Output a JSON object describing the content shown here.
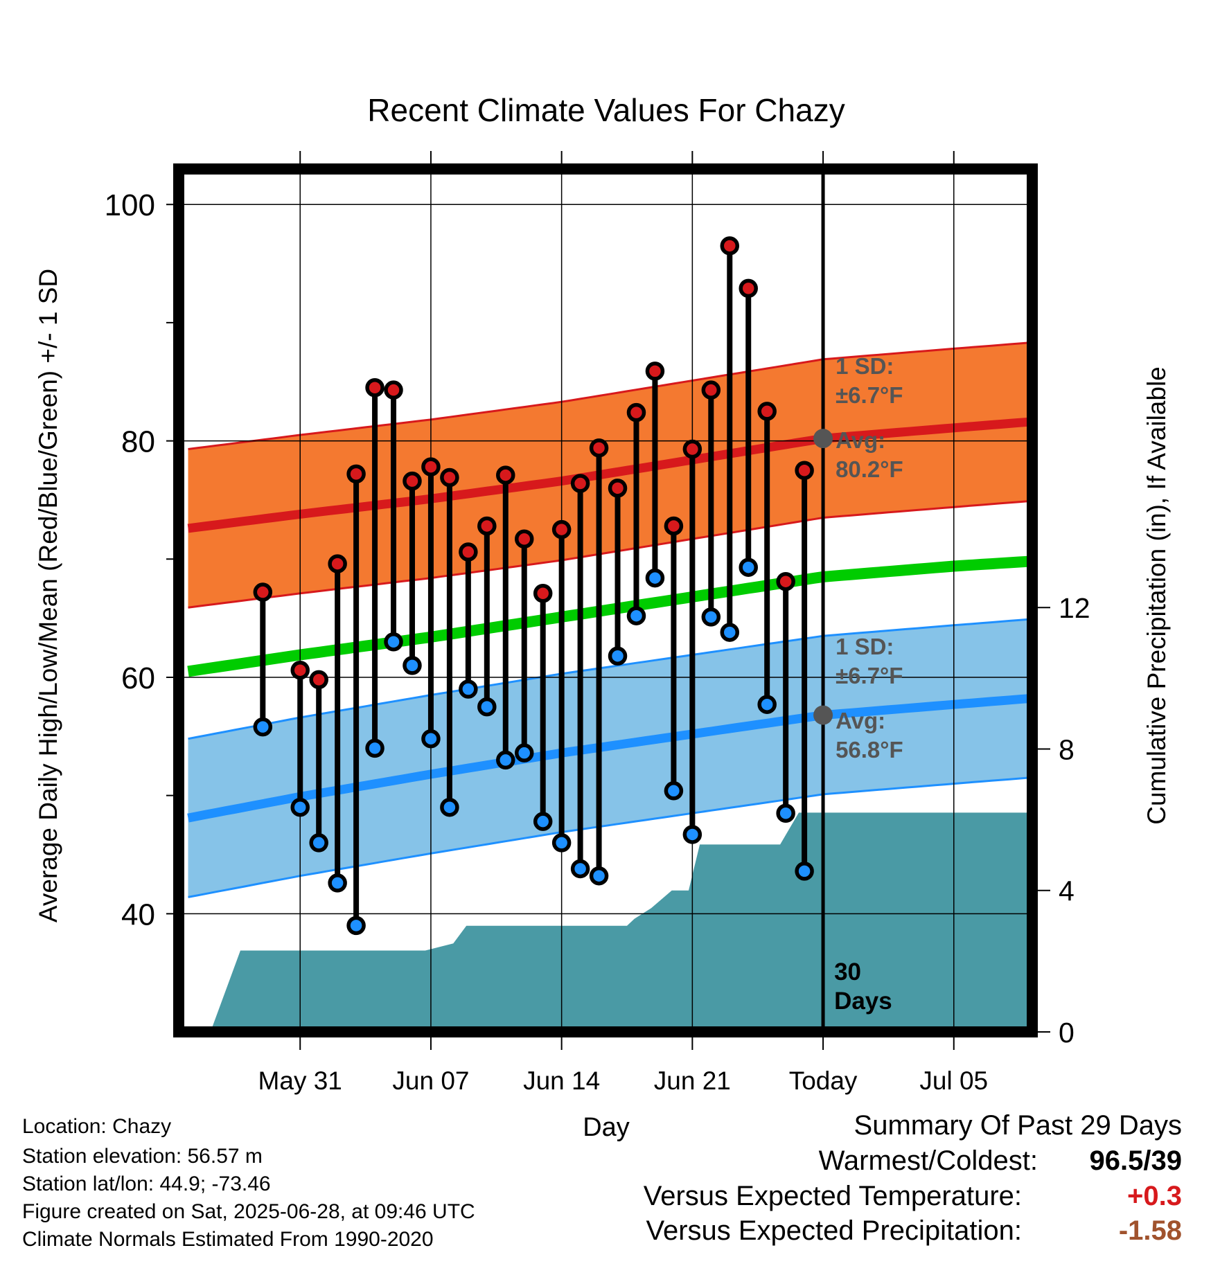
{
  "chart_data": {
    "type": "line",
    "title": "Recent Climate Values For Chazy",
    "xlabel": "Day",
    "ylabel": "Average Daily High/Low/Mean (Red/Blue/Green) +/- 1 SD",
    "ylabel_right": "Cumulative Precipitation (in), If Available",
    "ylim": [
      30,
      103
    ],
    "ylim_right": [
      0,
      24.4
    ],
    "yticks": [
      40,
      60,
      80,
      100
    ],
    "yticks_right": [
      0,
      4,
      8,
      12
    ],
    "x_range_days": [
      -34.5,
      11.2
    ],
    "x_ticks": [
      {
        "day": -28,
        "label": "May 31"
      },
      {
        "day": -21,
        "label": "Jun 07"
      },
      {
        "day": -14,
        "label": "Jun 14"
      },
      {
        "day": -7,
        "label": "Jun 21"
      },
      {
        "day": 0,
        "label": "Today"
      },
      {
        "day": 7,
        "label": "Jul 05"
      }
    ],
    "grid": true,
    "normal_high": {
      "x": [
        -34,
        -28,
        -21,
        -14,
        -7,
        0,
        7,
        11
      ],
      "values": [
        72.6,
        73.8,
        75.1,
        76.6,
        78.4,
        80.2,
        81.1,
        81.6
      ]
    },
    "normal_low": {
      "x": [
        -34,
        -28,
        -21,
        -14,
        -7,
        0,
        7,
        11
      ],
      "values": [
        48.1,
        49.9,
        51.8,
        53.6,
        55.2,
        56.8,
        57.7,
        58.2
      ]
    },
    "normal_mean": {
      "x": [
        -34,
        -28,
        -21,
        -14,
        -7,
        0,
        7,
        11
      ],
      "values": [
        60.5,
        61.9,
        63.4,
        65.1,
        66.8,
        68.5,
        69.4,
        69.8
      ]
    },
    "sd": 6.7,
    "daily": {
      "days": [
        -30,
        -28,
        -27,
        -26,
        -25,
        -24,
        -23,
        -22,
        -21,
        -20,
        -19,
        -18,
        -17,
        -16,
        -15,
        -14,
        -13,
        -12,
        -11,
        -10,
        -9,
        -8,
        -7,
        -6,
        -5,
        -4,
        -3,
        -2,
        -1
      ],
      "highs": [
        67.2,
        60.6,
        59.8,
        69.6,
        77.2,
        84.5,
        84.3,
        76.6,
        77.8,
        76.9,
        70.6,
        72.8,
        77.1,
        71.7,
        67.1,
        72.5,
        76.4,
        79.4,
        76.0,
        82.4,
        85.9,
        72.8,
        79.3,
        84.3,
        96.5,
        92.9,
        82.5,
        68.1,
        77.5
      ],
      "lows": [
        55.8,
        49.0,
        46.0,
        42.6,
        39.0,
        54.0,
        63.0,
        61.0,
        54.8,
        49.0,
        59.0,
        57.5,
        53.0,
        53.6,
        47.8,
        46.0,
        43.8,
        43.2,
        61.8,
        65.2,
        68.4,
        50.4,
        46.7,
        65.1,
        63.8,
        69.3,
        57.7,
        48.5,
        43.6
      ]
    },
    "precip": {
      "days": [
        -34.5,
        -32.8,
        -31.2,
        -21.3,
        -19.8,
        -19.1,
        -14.2,
        -10.5,
        -10.1,
        -9.2,
        -8.1,
        -7.2,
        -6.6,
        -5.6,
        -2.3,
        -1.3,
        11.2
      ],
      "values": [
        0,
        0,
        2.3,
        2.3,
        2.5,
        3.0,
        3.0,
        3.0,
        3.2,
        3.5,
        4.0,
        4.0,
        5.3,
        5.3,
        5.3,
        6.2,
        6.2
      ]
    },
    "annotations": {
      "high_sd_label": "1 SD:",
      "high_sd_value": "±6.7°F",
      "high_avg_label": "Avg:",
      "high_avg_value": "80.2°F",
      "low_sd_label": "1 SD:",
      "low_sd_value": "±6.7°F",
      "low_avg_label": "Avg:",
      "low_avg_value": "56.8°F",
      "period_days": "30",
      "period_unit": "Days"
    },
    "colors": {
      "high_band": "#f47930",
      "high_line": "#d7191c",
      "low_band": "#86c3e8",
      "low_line": "#1e90ff",
      "mean_line": "#00cc00",
      "precip_fill": "#4a9aa5",
      "high_dot": "#d7191c",
      "low_dot": "#1e90ff",
      "annotation_text": "#555555"
    }
  },
  "info": {
    "location": "Location: Chazy",
    "elevation": "Station elevation: 56.57 m",
    "latlon": "Station lat/lon: 44.9; -73.46",
    "created": "Figure created on Sat, 2025-06-28, at 09:46 UTC",
    "normals": "Climate Normals Estimated From 1990-2020"
  },
  "summary": {
    "title": "Summary Of Past 29 Days",
    "warm_cold_label": "Warmest/Coldest:",
    "warm_cold_value": "96.5/39",
    "temp_label": "Versus Expected Temperature:",
    "temp_value": "+0.3",
    "temp_color": "#d7191c",
    "precip_label": "Versus Expected Precipitation:",
    "precip_value": "-1.58",
    "precip_color": "#a0522d"
  }
}
